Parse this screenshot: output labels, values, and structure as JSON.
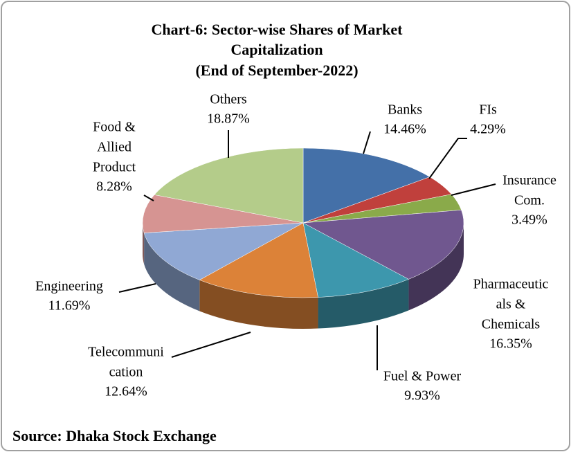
{
  "chart_data": {
    "type": "pie3d",
    "title": [
      "Chart-6: Sector-wise Shares of Market",
      "Capitalization",
      "(End of  September-2022)"
    ],
    "categories": [
      [
        "Banks"
      ],
      [
        "FIs"
      ],
      [
        "Insurance",
        "Com."
      ],
      [
        "Pharmaceutic",
        "als &",
        "Chemicals"
      ],
      [
        "Fuel & Power"
      ],
      [
        "Telecommuni",
        "cation"
      ],
      [
        "Engineering"
      ],
      [
        "Food &",
        "Allied",
        "Product"
      ],
      [
        "Others"
      ]
    ],
    "values": [
      14.46,
      4.29,
      3.49,
      16.35,
      9.93,
      12.64,
      11.69,
      8.28,
      18.87
    ],
    "value_labels": [
      "14.46%",
      "4.29%",
      "3.49%",
      "16.35%",
      "9.93%",
      "12.64%",
      "11.69%",
      "8.28%",
      "18.87%"
    ],
    "colors": [
      "#4470a8",
      "#c0403c",
      "#8aaa4a",
      "#70578f",
      "#3d97ad",
      "#dc8238",
      "#90a8d4",
      "#d69492",
      "#b4cc8a"
    ],
    "source": "Source: Dhaka Stock Exchange"
  }
}
